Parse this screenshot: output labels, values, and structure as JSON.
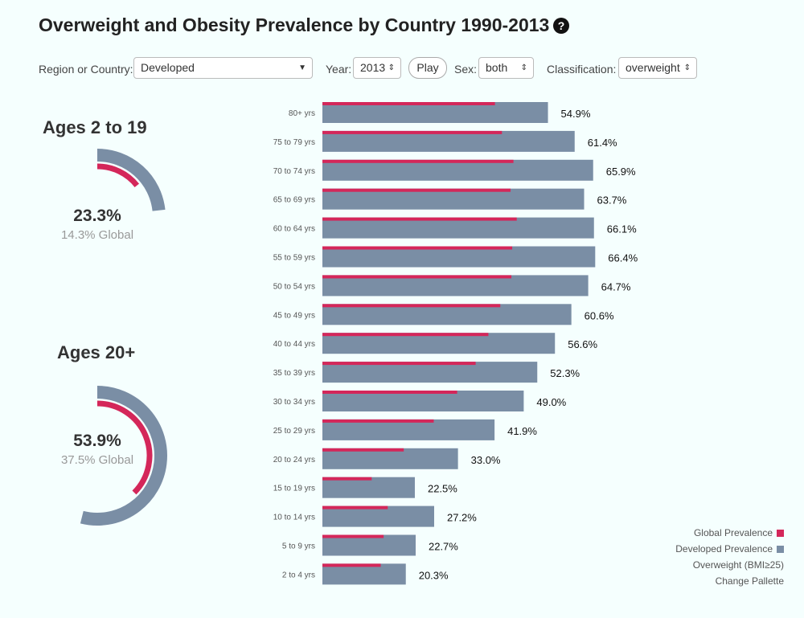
{
  "title": "Overweight and Obesity Prevalence by Country 1990-2013",
  "help_icon": "question-circle-icon",
  "controls": {
    "region_label": "Region or Country:",
    "region_value": "Developed",
    "year_label": "Year:",
    "year_value": "2013",
    "play_label": "Play",
    "sex_label": "Sex:",
    "sex_value": "both",
    "class_label": "Classification:",
    "class_value": "overweight"
  },
  "youth": {
    "heading": "Ages 2 to 19",
    "value": "23.3%",
    "global": "14.3% Global"
  },
  "adult": {
    "heading": "Ages 20+",
    "value": "53.9%",
    "global": "37.5% Global"
  },
  "legend": {
    "global": "Global Prevalence",
    "developed": "Developed Prevalence",
    "classification": "Overweight (BMI≥25)",
    "palette": "Change Pallette"
  },
  "colors": {
    "global": "#d4275a",
    "developed": "#7a8ea5",
    "background": "#f5fffe"
  },
  "chart_data": {
    "type": "bar",
    "categories": [
      "80+ yrs",
      "75 to 79 yrs",
      "70 to 74 yrs",
      "65 to 69 yrs",
      "60 to 64 yrs",
      "55 to 59 yrs",
      "50 to 54 yrs",
      "45 to 49 yrs",
      "40 to 44 yrs",
      "35 to 39 yrs",
      "30 to 34 yrs",
      "25 to 29 yrs",
      "20 to 24 yrs",
      "15 to 19 yrs",
      "10 to 14 yrs",
      "5 to 9 yrs",
      "2 to 4 yrs"
    ],
    "series": [
      {
        "name": "Developed Prevalence",
        "values": [
          54.9,
          61.4,
          65.9,
          63.7,
          66.1,
          66.4,
          64.7,
          60.6,
          56.6,
          52.3,
          49.0,
          41.9,
          33.0,
          22.5,
          27.2,
          22.7,
          20.3
        ]
      },
      {
        "name": "Global Prevalence",
        "values": [
          42.0,
          43.7,
          46.5,
          45.8,
          47.3,
          46.2,
          46.0,
          43.3,
          40.4,
          37.3,
          32.8,
          27.1,
          19.8,
          12.0,
          15.9,
          14.9,
          14.2
        ]
      }
    ],
    "labels": [
      "54.9%",
      "61.4%",
      "65.9%",
      "63.7%",
      "66.1%",
      "66.4%",
      "64.7%",
      "60.6%",
      "56.6%",
      "52.3%",
      "49.0%",
      "41.9%",
      "33.0%",
      "22.5%",
      "27.2%",
      "22.7%",
      "20.3%"
    ],
    "donuts": [
      {
        "name": "Ages 2 to 19",
        "developed": 23.3,
        "global": 14.3
      },
      {
        "name": "Ages 20+",
        "developed": 53.9,
        "global": 37.5
      }
    ]
  }
}
